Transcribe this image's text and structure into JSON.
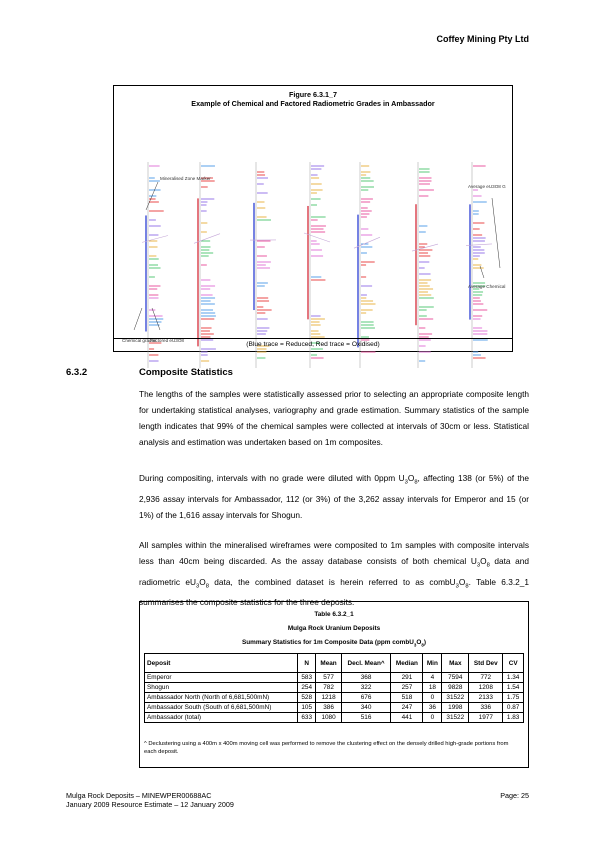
{
  "header": {
    "company": "Coffey Mining Pty Ltd"
  },
  "figure": {
    "number": "Figure 6.3.1_7",
    "title": "Example of Chemical and Factored Radiometric Grades in Ambassador",
    "caption": "(Blue trace = Reduced, Red trace = Oxidised)",
    "annotations": {
      "zone": "Mineralised Zone Marker",
      "average": "Average eU3O8 Grade",
      "average_chem": "Average Chemical Grade",
      "chemical": "Chemical grades",
      "factored": "Factored eU3O8"
    },
    "colors": {
      "reduced": "#1a2fd0",
      "oxidised": "#d11c2a"
    }
  },
  "section": {
    "number": "6.3.2",
    "title": "Composite Statistics",
    "p1": "The lengths of the samples were statistically assessed prior to selecting an appropriate composite length for undertaking statistical analyses, variography and grade estimation. Summary statistics of the sample length indicates that 99% of the chemical samples were collected at intervals of 30cm or less. Statistical analysis and estimation was undertaken based on 1m composites.",
    "p2": "During compositing, intervals with no grade were diluted with 0ppm U3O8, affecting 138 (or 5%) of the 2,936 assay intervals for Ambassador, 112 (or 3%) of the 3,262 assay intervals for Emperor and 15 (or 1%) of the 1,616 assay intervals for Shogun.",
    "p3": "All samples within the mineralised wireframes were composited to 1m samples with composite intervals less than 40cm being discarded. As the assay database consists of both chemical U3O8 data and radiometric eU3O8 data, the combined dataset is herein referred to as combU3O8. Table 6.3.2_1 summarises the composite statistics for the three deposits."
  },
  "table": {
    "number": "Table 6.3.2_1",
    "title": "Mulga Rock Uranium Deposits",
    "subtitle": "Summary Statistics for 1m Composite Data (ppm combU3O8)",
    "headers": [
      "Deposit",
      "N",
      "Mean",
      "Decl. Mean^",
      "Median",
      "Min",
      "Max",
      "Std Dev",
      "CV"
    ],
    "rows": [
      [
        "Emperor",
        "583",
        "577",
        "368",
        "291",
        "4",
        "7594",
        "772",
        "1.34"
      ],
      [
        "Shogun",
        "254",
        "782",
        "322",
        "257",
        "18",
        "9828",
        "1208",
        "1.54"
      ],
      [
        "Ambassador North (North of 6,681,500mN)",
        "528",
        "1218",
        "676",
        "518",
        "0",
        "31522",
        "2133",
        "1.75"
      ],
      [
        "Ambassador South (South of 6,681,500mN)",
        "105",
        "386",
        "340",
        "247",
        "36",
        "1998",
        "336",
        "0.87"
      ],
      [
        "Ambassador (total)",
        "633",
        "1080",
        "516",
        "441",
        "0",
        "31522",
        "1977",
        "1.83"
      ]
    ],
    "note": "^ Declustering using a 400m x 400m moving cell was performed to remove the clustering effect on the densely drilled high-grade portions from each deposit."
  },
  "footer": {
    "line1": "Mulga Rock Deposits – MINEWPER00688AC",
    "line2": "January 2009 Resource Estimate – 12 January 2009",
    "page": "Page: 25"
  }
}
